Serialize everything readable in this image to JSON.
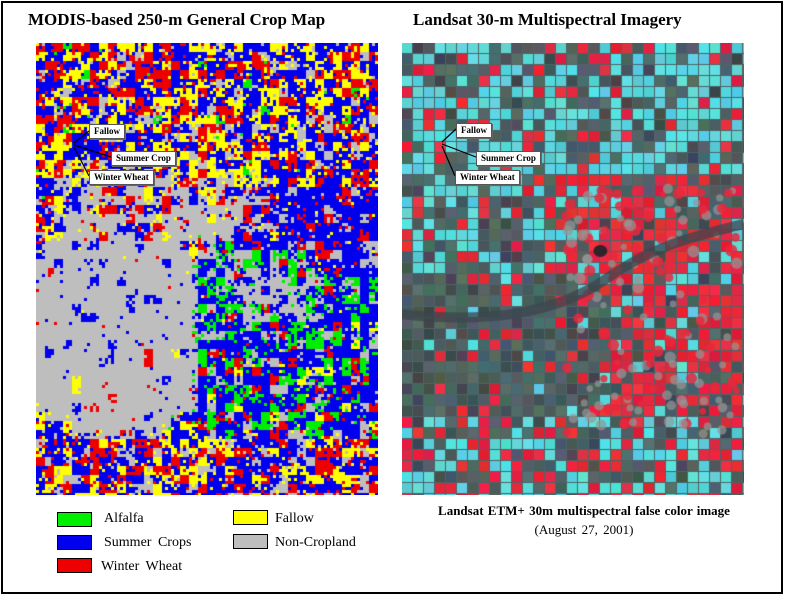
{
  "left_panel": {
    "title": "MODIS-based 250-m General Crop Map",
    "callouts": [
      "Fallow",
      "Summer Crop",
      "Winter Wheat"
    ]
  },
  "right_panel": {
    "title": "Landsat 30-m Multispectral Imagery",
    "callouts": [
      "Fallow",
      "Summer Crop",
      "Winter Wheat"
    ],
    "caption_line1": "Landsat ETM+ 30m multispectral false color image",
    "caption_line2": "(August 27, 2001)"
  },
  "legend": [
    {
      "label": "Alfalfa",
      "color": "#00ee00"
    },
    {
      "label": "Fallow",
      "color": "#ffff00"
    },
    {
      "label": "Summer Crops",
      "color": "#0000ee"
    },
    {
      "label": "Non-Cropland",
      "color": "#bebebe"
    },
    {
      "label": "Winter Wheat",
      "color": "#ee0000"
    }
  ],
  "colors": {
    "alfalfa": "#00ee00",
    "fallow": "#ffff00",
    "summer_crops": "#0000ee",
    "non_cropland": "#bebebe",
    "winter_wheat": "#ee0000",
    "landsat_cyan": "#5ad6dc",
    "landsat_red": "#e8283c",
    "landsat_gray": "#4e6466"
  }
}
